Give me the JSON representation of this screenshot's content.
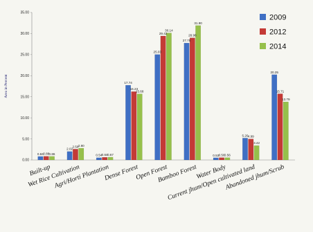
{
  "chart_data": {
    "type": "bar",
    "ylabel": "Area in Percent",
    "ylim": [
      0,
      35
    ],
    "yticks": [
      "0.00",
      "5.00",
      "10.00",
      "15.00",
      "20.00",
      "25.00",
      "30.00",
      "35.00"
    ],
    "grid": false,
    "legend_position": "top-right",
    "categories": [
      "Built-up",
      "Wet Rice Cultivation",
      "Agri/Horti Plantation",
      "Dense Forest",
      "Open Forest",
      "Bamboo Forest",
      "Water Body",
      "Current jhum/Open cultivated land",
      "Abandoned jhum/Scrub"
    ],
    "series": [
      {
        "name": "2009",
        "color": "#3f6fc4",
        "values": [
          0.84,
          2.02,
          0.54,
          17.74,
          25.03,
          27.75,
          0.53,
          5.2,
          20.25
        ],
        "labels": [
          "0.84",
          "2.02",
          "0.54",
          "17.74",
          "25.03",
          "27.75",
          "0.53",
          "5.20",
          "20.25"
        ]
      },
      {
        "name": "2012",
        "color": "#c43a36",
        "values": [
          0.88,
          2.58,
          0.64,
          16.23,
          29.42,
          28.98,
          0.56,
          4.99,
          15.71
        ],
        "labels": [
          "0.88",
          "2.58",
          "0.64",
          "16.23",
          "29.42",
          "28.98",
          "0.56",
          "4.99",
          "15.71"
        ]
      },
      {
        "name": "2014",
        "color": "#96c04b",
        "values": [
          0.86,
          2.8,
          0.67,
          15.68,
          30.14,
          31.9,
          0.56,
          3.42,
          13.79
        ],
        "labels": [
          "0.86",
          "2.80",
          "0.67",
          "15.68",
          "30.14",
          "31.90",
          "0.56",
          "3.42",
          "13.79"
        ]
      }
    ]
  }
}
